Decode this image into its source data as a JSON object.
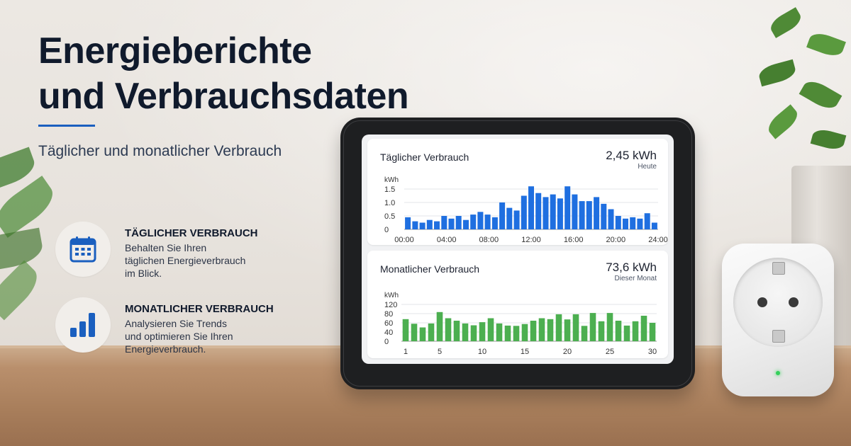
{
  "hero": {
    "title_line1": "Energieberichte",
    "title_line2": "und Verbrauchsdaten",
    "subtitle": "Täglicher und monatlicher Verbrauch"
  },
  "features": [
    {
      "icon": "calendar-icon",
      "title": "TÄGLICHER VERBRAUCH",
      "lines": [
        "Behalten Sie Ihren",
        "täglichen Energieverbrauch",
        "im Blick."
      ]
    },
    {
      "icon": "bar-chart-icon",
      "title": "MONATLICHER VERBRAUCH",
      "lines": [
        "Analysieren Sie Trends",
        "und optimieren Sie Ihren",
        "Energieverbrauch."
      ]
    }
  ],
  "colors": {
    "accent": "#1a5fbf",
    "daily_bar": "#1f6fe0",
    "monthly_bar": "#4caf50",
    "title": "#101a2c"
  },
  "device": {
    "daily_card": {
      "title": "Täglicher Verbrauch",
      "value": "2,45 kWh",
      "note": "Heute"
    },
    "monthly_card": {
      "title": "Monatlicher Verbrauch",
      "value": "73,6 kWh",
      "note": "Dieser Monat"
    },
    "plug_led": "green"
  },
  "chart_data": [
    {
      "type": "bar",
      "title": "Täglicher Verbrauch",
      "ylabel": "kWh",
      "ylim": [
        0,
        1.5
      ],
      "yticks": [
        "1.5",
        "1.0",
        "0.5",
        "0"
      ],
      "xtick_labels": [
        "00:00",
        "04:00",
        "08:00",
        "12:00",
        "16:00",
        "20:00",
        "24:00"
      ],
      "grid": true,
      "color": "#1f6fe0",
      "values": [
        0.45,
        0.3,
        0.25,
        0.35,
        0.3,
        0.5,
        0.4,
        0.5,
        0.35,
        0.55,
        0.65,
        0.55,
        0.45,
        1.0,
        0.8,
        0.7,
        1.25,
        1.6,
        1.35,
        1.2,
        1.3,
        1.15,
        1.6,
        1.3,
        1.05,
        1.05,
        1.2,
        0.95,
        0.75,
        0.5,
        0.4,
        0.45,
        0.4,
        0.6,
        0.25
      ]
    },
    {
      "type": "bar",
      "title": "Monatlicher Verbrauch",
      "ylabel": "kWh",
      "ylim": [
        0,
        120
      ],
      "yticks": [
        "120",
        "80",
        "60",
        "40",
        "0"
      ],
      "xtick_labels": [
        "1",
        "5",
        "10",
        "15",
        "20",
        "25",
        "30"
      ],
      "x": [
        1,
        2,
        3,
        4,
        5,
        6,
        7,
        8,
        9,
        10,
        11,
        12,
        13,
        14,
        15,
        16,
        17,
        18,
        19,
        20,
        21,
        22,
        23,
        24,
        25,
        26,
        27,
        28,
        29,
        30
      ],
      "grid": true,
      "color": "#4caf50",
      "values": [
        72,
        57,
        45,
        58,
        95,
        75,
        67,
        58,
        52,
        62,
        75,
        58,
        51,
        50,
        56,
        67,
        75,
        72,
        88,
        71,
        88,
        50,
        92,
        65,
        92,
        67,
        51,
        65,
        83,
        60
      ]
    }
  ]
}
